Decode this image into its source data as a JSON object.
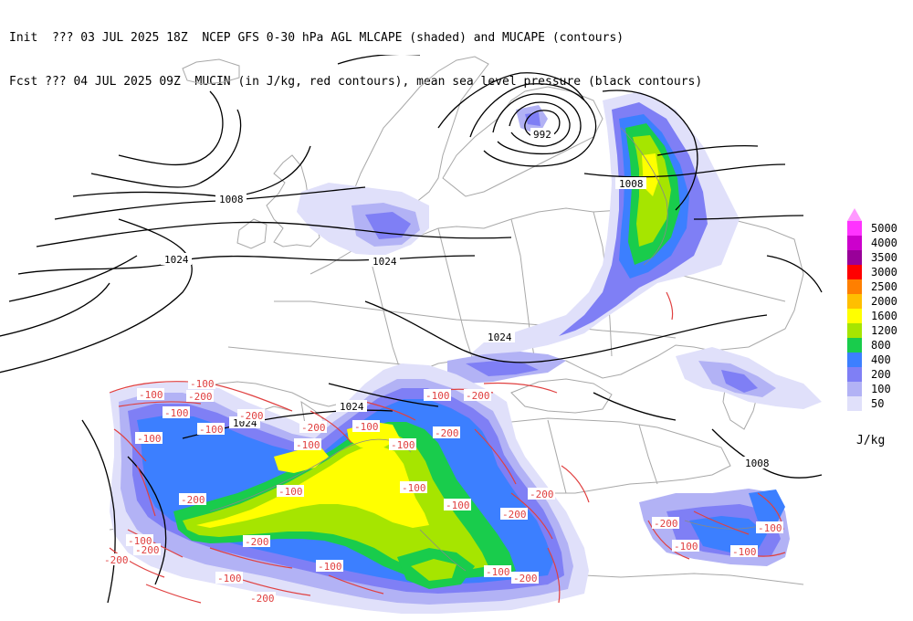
{
  "header": {
    "line1": "Init  ??? 03 JUL 2025 18Z  NCEP GFS 0-30 hPa AGL MLCAPE (shaded) and MUCAPE (contours)",
    "line2": "Fcst ??? 04 JUL 2025 09Z  MUCIN (in J/kg, red contours), mean sea level pressure (black contours)"
  },
  "legend": {
    "units": "J/kg",
    "levels": [
      {
        "label": "5000",
        "color": "#ff33ff"
      },
      {
        "label": "4000",
        "color": "#cc00cc"
      },
      {
        "label": "3500",
        "color": "#990099"
      },
      {
        "label": "3000",
        "color": "#ff0000"
      },
      {
        "label": "2500",
        "color": "#ff7f00"
      },
      {
        "label": "2000",
        "color": "#ffbf00"
      },
      {
        "label": "1600",
        "color": "#ffff00"
      },
      {
        "label": "1200",
        "color": "#a6e500"
      },
      {
        "label": "800",
        "color": "#19cc4c"
      },
      {
        "label": "400",
        "color": "#3c7fff"
      },
      {
        "label": "200",
        "color": "#7f7ff5"
      },
      {
        "label": "100",
        "color": "#b2b2f5"
      },
      {
        "label": "50",
        "color": "#e0e0fa"
      }
    ],
    "top_triangle_color": "#ff99ff"
  },
  "isobar_labels": [
    "1008",
    "992",
    "1008",
    "1008",
    "1024",
    "1024",
    "1024",
    "1024",
    "1024",
    "1008"
  ],
  "cin_labels": [
    "-100",
    "-100",
    "-200",
    "-100",
    "-200",
    "-100",
    "-100",
    "-200",
    "-100",
    "-100",
    "-100",
    "-200",
    "-100",
    "-200",
    "-200",
    "-200",
    "-100",
    "-100",
    "-200",
    "-100",
    "-200",
    "-200",
    "-100",
    "-200",
    "-100",
    "-200",
    "-200",
    "-200",
    "-100",
    "-100",
    "-100",
    "-100",
    "-100"
  ]
}
